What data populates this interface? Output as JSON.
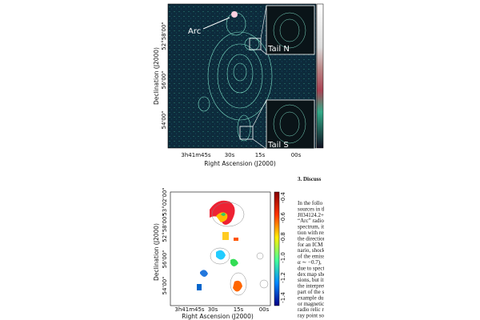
{
  "top_figure": {
    "annotations": [
      "Arc",
      "Tail N",
      "Tail S"
    ],
    "x_ticks": [
      "3h41m45s",
      "30s",
      "15s",
      "00s"
    ],
    "y_ticks": [
      "52°58'00\"",
      "56'00\"",
      "54'00\""
    ],
    "x_label": "Right Ascension (J2000)",
    "y_label": "Declination (J2000)"
  },
  "bottom_figure": {
    "x_ticks": [
      "3h41m45s",
      "30s",
      "15s",
      "00s"
    ],
    "y_ticks": [
      "53°02'00\"",
      "52°58'00\"",
      "56'00\"",
      "54'00\""
    ],
    "x_label": "Right Ascension (J2000)",
    "y_label": "Declination (J2000)",
    "colorbar_ticks": [
      "-0.4",
      "-0.6",
      "-0.8",
      "-1.0",
      "-1.2",
      "-1.4"
    ]
  },
  "text_column": {
    "heading": "3. Discuss",
    "lines": [
      "In the follo",
      "sources in th",
      "J034124.2+7",
      "“Arc” radio",
      "spectrum, its",
      "tion with res",
      "the direction",
      "for an ICM s",
      "nario, shock",
      "of the emiss",
      "α ∼ −0.7),",
      "due to spect",
      "dex map sho",
      "sions, but it",
      "the interpret",
      "part of the s",
      "example du",
      "or magnetic",
      "radio relic re",
      "ray point so"
    ]
  }
}
